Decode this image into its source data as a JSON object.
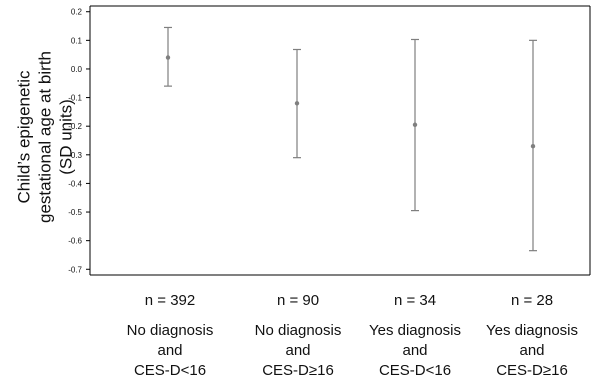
{
  "chart_data": {
    "type": "scatter",
    "subtype": "point-with-error-bars",
    "title": "",
    "xlabel": "",
    "ylabel_lines": [
      "Child’s epigenetic",
      "gestational age at birth",
      "(SD units)"
    ],
    "ylim": [
      -0.72,
      0.22
    ],
    "yticks": [
      0.2,
      0.1,
      0.0,
      -0.1,
      -0.2,
      -0.3,
      -0.4,
      -0.5,
      -0.6,
      -0.7
    ],
    "ytick_labels": [
      "0.2",
      "0.1",
      "0.0",
      "-0.1",
      "-0.2",
      "-0.3",
      "-0.4",
      "-0.5",
      "-0.6",
      "-0.7"
    ],
    "grid": false,
    "legend": "none",
    "point_color": "#7f7f7f",
    "categories": [
      {
        "n_label": "n = 392",
        "lines": [
          "No diagnosis",
          "and",
          "CES-D<16"
        ],
        "value": 0.04,
        "lower": -0.06,
        "upper": 0.145
      },
      {
        "n_label": "n = 90",
        "lines": [
          "No diagnosis",
          "and",
          "CES-D≥16"
        ],
        "value": -0.12,
        "lower": -0.31,
        "upper": 0.068
      },
      {
        "n_label": "n = 34",
        "lines": [
          "Yes diagnosis",
          "and",
          "CES-D<16"
        ],
        "value": -0.195,
        "lower": -0.495,
        "upper": 0.103
      },
      {
        "n_label": "n = 28",
        "lines": [
          "Yes diagnosis",
          "and",
          "CES-D≥16"
        ],
        "value": -0.27,
        "lower": -0.635,
        "upper": 0.1
      }
    ]
  }
}
